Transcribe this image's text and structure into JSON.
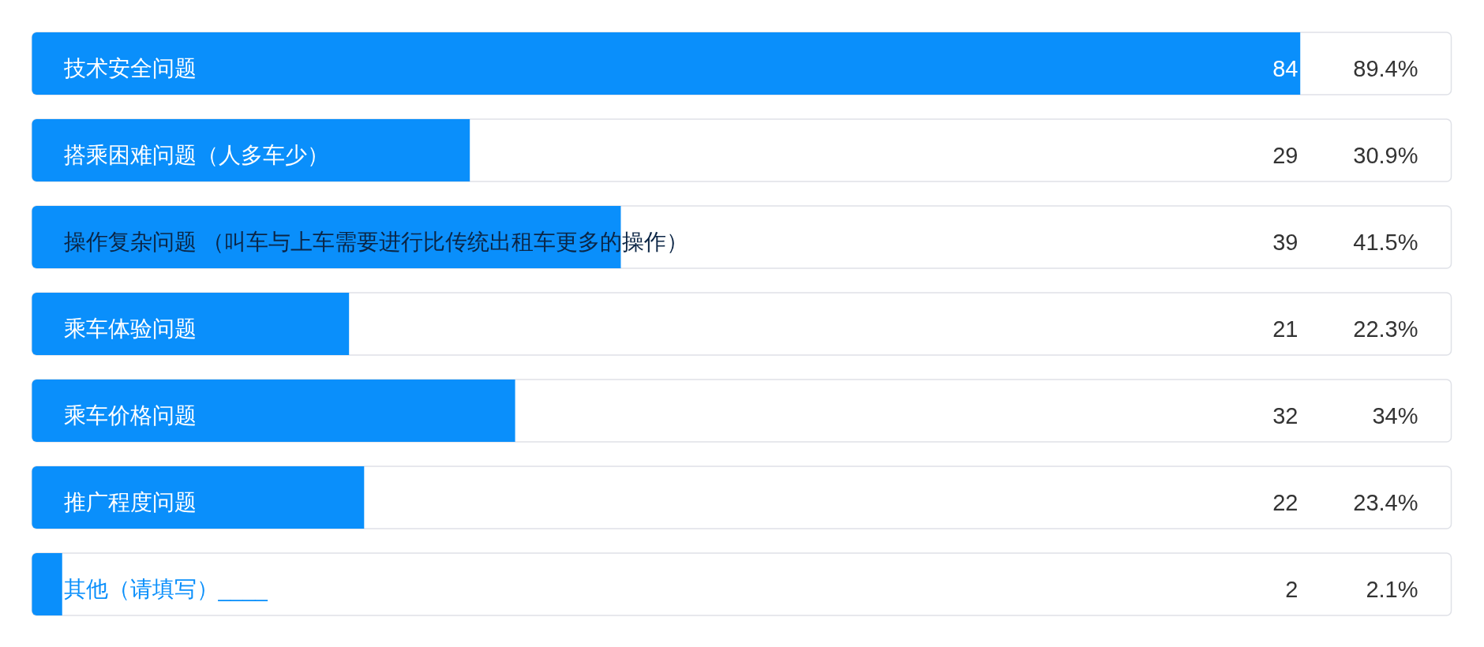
{
  "chart_data": {
    "type": "bar",
    "orientation": "horizontal",
    "categories": [
      "技术安全问题",
      "搭乘困难问题（人多车少）",
      "操作复杂问题 （叫车与上车需要进行比传统出租车更多的操作）",
      "乘车体验问题",
      "乘车价格问题",
      "推广程度问题",
      "其他（请填写）____"
    ],
    "values": [
      84,
      29,
      39,
      21,
      32,
      22,
      2
    ],
    "color": "#0a8ffb",
    "xlim": [
      0,
      94
    ],
    "data_labels": true,
    "tick_labels": "y",
    "annotations": [
      "89.4%",
      "30.9%",
      "41.5%",
      "22.3%",
      "34%",
      "23.4%",
      "2.1%"
    ]
  }
}
